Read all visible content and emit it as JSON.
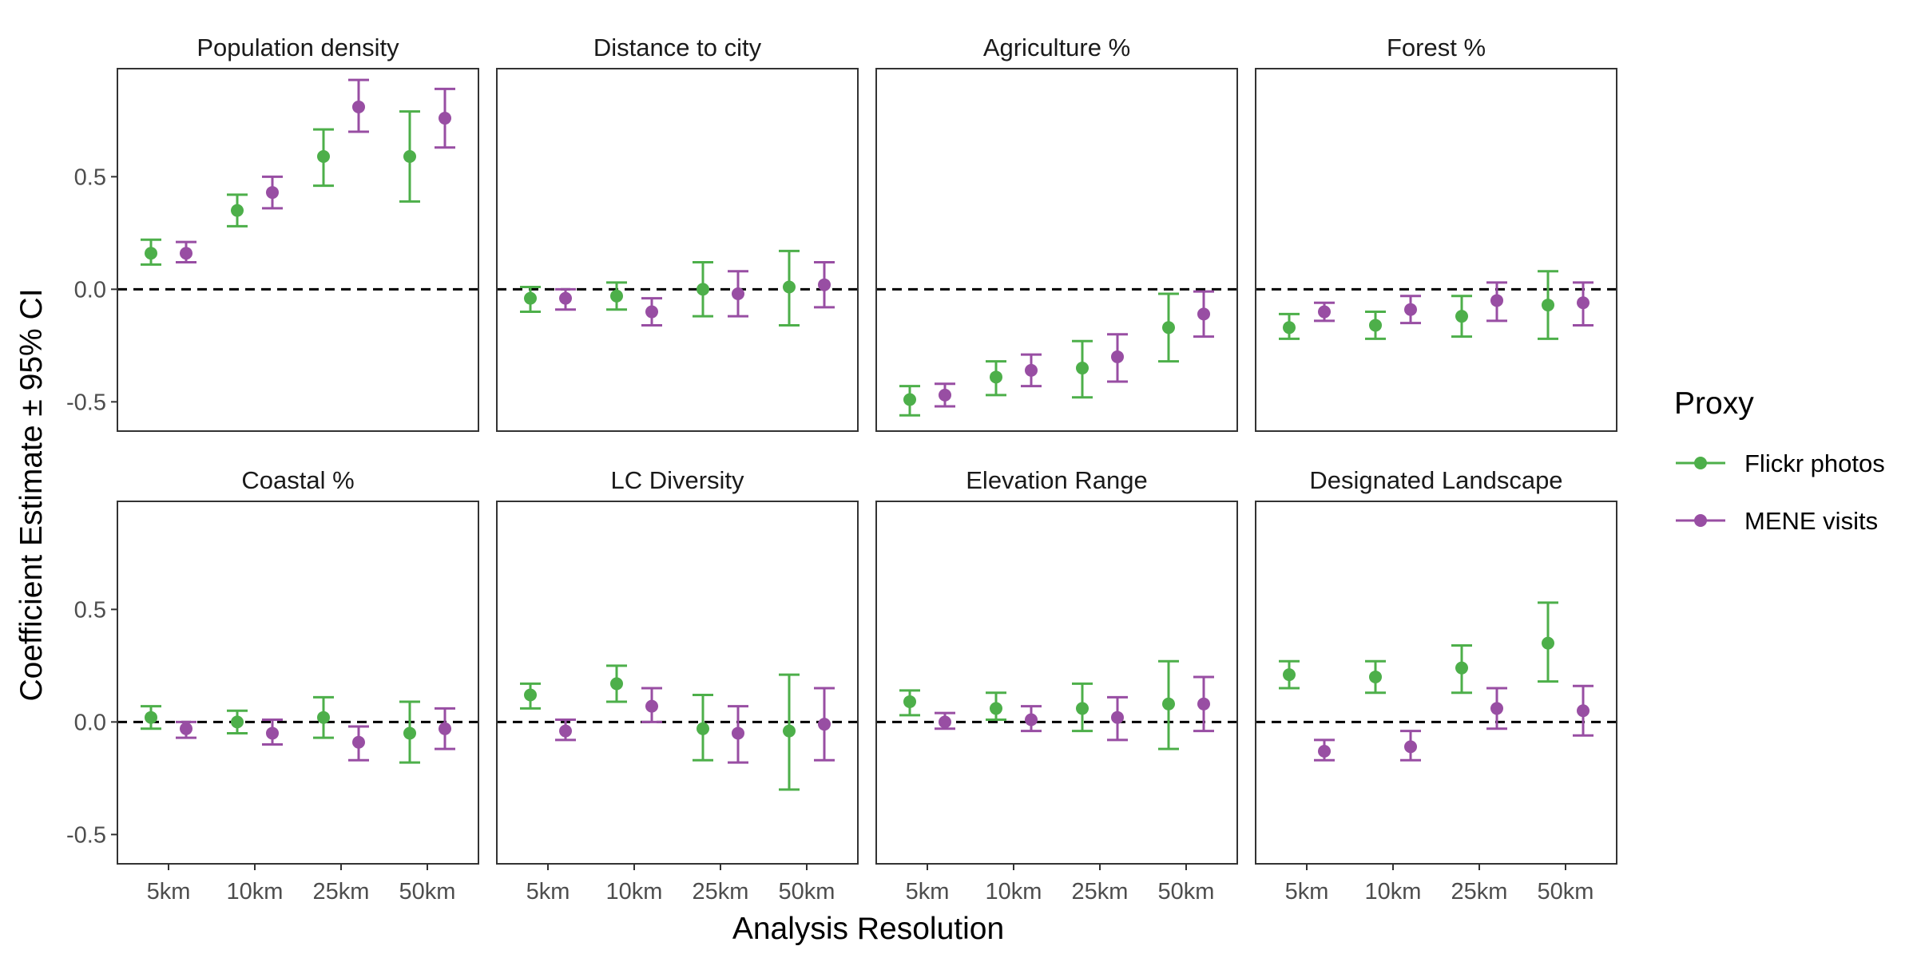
{
  "chart_data": {
    "type": "scatter",
    "subtype": "point-errorbar-faceted",
    "xlabel": "Analysis Resolution",
    "ylabel": "Coefficient Estimate ± 95% CI",
    "categories": [
      "5km",
      "10km",
      "25km",
      "50km"
    ],
    "y_ticks": [
      -0.5,
      0.0,
      0.5
    ],
    "y_tick_labels": [
      "-0.5",
      "0.0",
      "0.5"
    ],
    "ylim": [
      -0.63,
      0.98
    ],
    "reference_line": 0,
    "legend": {
      "title": "Proxy",
      "position": "right",
      "entries": [
        {
          "name": "Flickr photos",
          "color": "#4DAF4A"
        },
        {
          "name": "MENE visits",
          "color": "#984EA3"
        }
      ]
    },
    "panels": [
      {
        "title": "Population density",
        "series": [
          {
            "name": "Flickr photos",
            "color": "#4DAF4A",
            "estimate": [
              0.16,
              0.35,
              0.59,
              0.59
            ],
            "lower": [
              0.11,
              0.28,
              0.46,
              0.39
            ],
            "upper": [
              0.22,
              0.42,
              0.71,
              0.79
            ]
          },
          {
            "name": "MENE visits",
            "color": "#984EA3",
            "estimate": [
              0.16,
              0.43,
              0.81,
              0.76
            ],
            "lower": [
              0.12,
              0.36,
              0.7,
              0.63
            ],
            "upper": [
              0.21,
              0.5,
              0.93,
              0.89
            ]
          }
        ]
      },
      {
        "title": "Distance to city",
        "series": [
          {
            "name": "Flickr photos",
            "color": "#4DAF4A",
            "estimate": [
              -0.04,
              -0.03,
              0.0,
              0.01
            ],
            "lower": [
              -0.1,
              -0.09,
              -0.12,
              -0.16
            ],
            "upper": [
              0.01,
              0.03,
              0.12,
              0.17
            ]
          },
          {
            "name": "MENE visits",
            "color": "#984EA3",
            "estimate": [
              -0.04,
              -0.1,
              -0.02,
              0.02
            ],
            "lower": [
              -0.09,
              -0.16,
              -0.12,
              -0.08
            ],
            "upper": [
              0.0,
              -0.04,
              0.08,
              0.12
            ]
          }
        ]
      },
      {
        "title": "Agriculture %",
        "series": [
          {
            "name": "Flickr photos",
            "color": "#4DAF4A",
            "estimate": [
              -0.49,
              -0.39,
              -0.35,
              -0.17
            ],
            "lower": [
              -0.56,
              -0.47,
              -0.48,
              -0.32
            ],
            "upper": [
              -0.43,
              -0.32,
              -0.23,
              -0.02
            ]
          },
          {
            "name": "MENE visits",
            "color": "#984EA3",
            "estimate": [
              -0.47,
              -0.36,
              -0.3,
              -0.11
            ],
            "lower": [
              -0.52,
              -0.43,
              -0.41,
              -0.21
            ],
            "upper": [
              -0.42,
              -0.29,
              -0.2,
              -0.01
            ]
          }
        ]
      },
      {
        "title": "Forest %",
        "series": [
          {
            "name": "Flickr photos",
            "color": "#4DAF4A",
            "estimate": [
              -0.17,
              -0.16,
              -0.12,
              -0.07
            ],
            "lower": [
              -0.22,
              -0.22,
              -0.21,
              -0.22
            ],
            "upper": [
              -0.11,
              -0.1,
              -0.03,
              0.08
            ]
          },
          {
            "name": "MENE visits",
            "color": "#984EA3",
            "estimate": [
              -0.1,
              -0.09,
              -0.05,
              -0.06
            ],
            "lower": [
              -0.14,
              -0.15,
              -0.14,
              -0.16
            ],
            "upper": [
              -0.06,
              -0.03,
              0.03,
              0.03
            ]
          }
        ]
      },
      {
        "title": "Coastal %",
        "series": [
          {
            "name": "Flickr photos",
            "color": "#4DAF4A",
            "estimate": [
              0.02,
              0.0,
              0.02,
              -0.05
            ],
            "lower": [
              -0.03,
              -0.05,
              -0.07,
              -0.18
            ],
            "upper": [
              0.07,
              0.05,
              0.11,
              0.09
            ]
          },
          {
            "name": "MENE visits",
            "color": "#984EA3",
            "estimate": [
              -0.03,
              -0.05,
              -0.09,
              -0.03
            ],
            "lower": [
              -0.07,
              -0.1,
              -0.17,
              -0.12
            ],
            "upper": [
              0.0,
              0.01,
              -0.02,
              0.06
            ]
          }
        ]
      },
      {
        "title": "LC Diversity",
        "series": [
          {
            "name": "Flickr photos",
            "color": "#4DAF4A",
            "estimate": [
              0.12,
              0.17,
              -0.03,
              -0.04
            ],
            "lower": [
              0.06,
              0.09,
              -0.17,
              -0.3
            ],
            "upper": [
              0.17,
              0.25,
              0.12,
              0.21
            ]
          },
          {
            "name": "MENE visits",
            "color": "#984EA3",
            "estimate": [
              -0.04,
              0.07,
              -0.05,
              -0.01
            ],
            "lower": [
              -0.08,
              0.0,
              -0.18,
              -0.17
            ],
            "upper": [
              0.01,
              0.15,
              0.07,
              0.15
            ]
          }
        ]
      },
      {
        "title": "Elevation Range",
        "series": [
          {
            "name": "Flickr photos",
            "color": "#4DAF4A",
            "estimate": [
              0.09,
              0.06,
              0.06,
              0.08
            ],
            "lower": [
              0.03,
              0.01,
              -0.04,
              -0.12
            ],
            "upper": [
              0.14,
              0.13,
              0.17,
              0.27
            ]
          },
          {
            "name": "MENE visits",
            "color": "#984EA3",
            "estimate": [
              0.0,
              0.01,
              0.02,
              0.08
            ],
            "lower": [
              -0.03,
              -0.04,
              -0.08,
              -0.04
            ],
            "upper": [
              0.04,
              0.07,
              0.11,
              0.2
            ]
          }
        ]
      },
      {
        "title": "Designated Landscape",
        "series": [
          {
            "name": "Flickr photos",
            "color": "#4DAF4A",
            "estimate": [
              0.21,
              0.2,
              0.24,
              0.35
            ],
            "lower": [
              0.15,
              0.13,
              0.13,
              0.18
            ],
            "upper": [
              0.27,
              0.27,
              0.34,
              0.53
            ]
          },
          {
            "name": "MENE visits",
            "color": "#984EA3",
            "estimate": [
              -0.13,
              -0.11,
              0.06,
              0.05
            ],
            "lower": [
              -0.17,
              -0.17,
              -0.03,
              -0.06
            ],
            "upper": [
              -0.08,
              -0.04,
              0.15,
              0.16
            ]
          }
        ]
      }
    ]
  }
}
